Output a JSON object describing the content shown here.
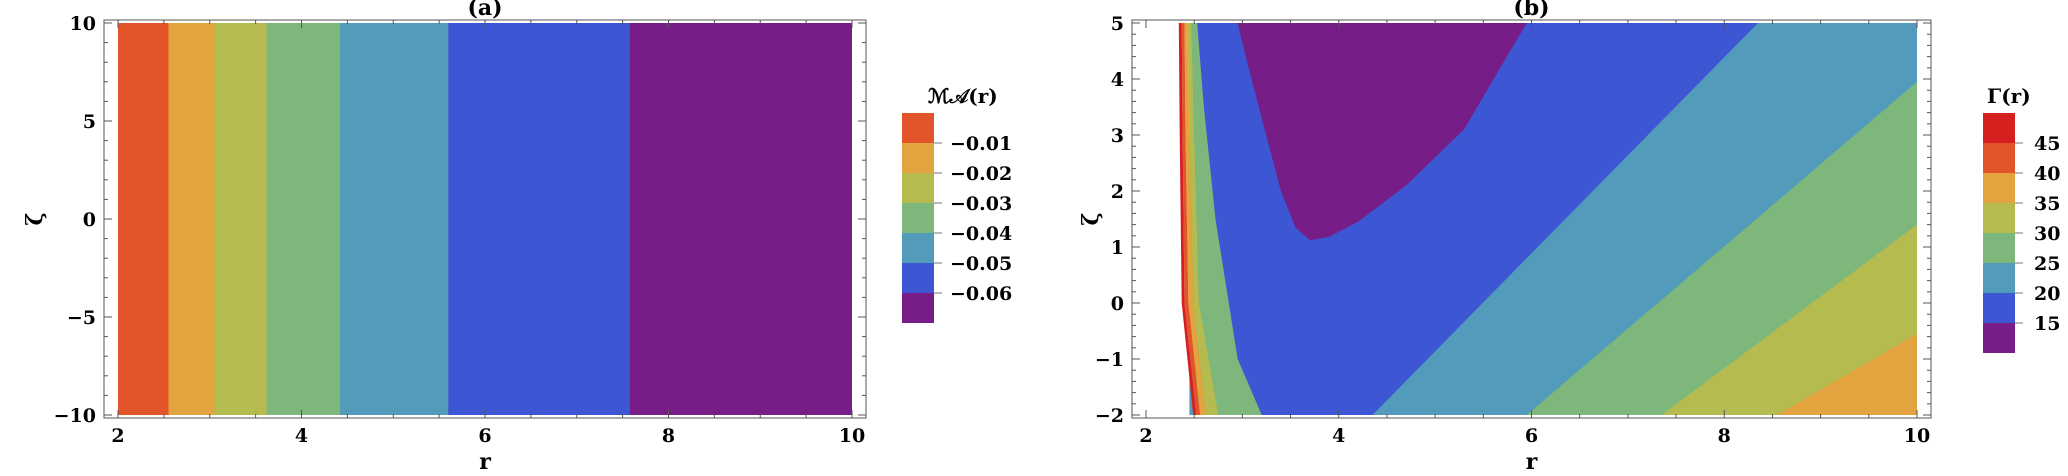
{
  "chart_data": [
    {
      "type": "contour",
      "title": "(a)",
      "xlabel": "r",
      "ylabel": "ζ",
      "xlim": [
        2,
        10
      ],
      "ylim": [
        -10,
        10
      ],
      "x_ticks": [
        2,
        4,
        6,
        8,
        10
      ],
      "y_ticks": [
        {
          "value": 10,
          "label": "10"
        },
        {
          "value": 5,
          "label": "5"
        },
        {
          "value": 0,
          "label": "0"
        },
        {
          "value": -5,
          "label": "−5"
        },
        {
          "value": -10,
          "label": "−10"
        }
      ],
      "bands": [
        {
          "x_from": 2.0,
          "x_to": 2.55,
          "color": "#e2552a"
        },
        {
          "x_from": 2.55,
          "x_to": 3.05,
          "color": "#e3a33f"
        },
        {
          "x_from": 3.05,
          "x_to": 3.62,
          "color": "#b5bb4f"
        },
        {
          "x_from": 3.62,
          "x_to": 4.42,
          "color": "#7db77b"
        },
        {
          "x_from": 4.42,
          "x_to": 5.6,
          "color": "#529bbb"
        },
        {
          "x_from": 5.6,
          "x_to": 7.58,
          "color": "#3d56d3"
        },
        {
          "x_from": 7.58,
          "x_to": 10.0,
          "color": "#761d87"
        }
      ],
      "legend": {
        "title": "ℳ𝒜(r)",
        "swatches": [
          "#e2552a",
          "#e3a33f",
          "#b5bb4f",
          "#7db77b",
          "#529bbb",
          "#3d56d3",
          "#761d87"
        ],
        "labels": [
          "−0.01",
          "−0.02",
          "−0.03",
          "−0.04",
          "−0.05",
          "−0.06"
        ]
      }
    },
    {
      "type": "contour",
      "title": "(b)",
      "xlabel": "r",
      "ylabel": "ζ",
      "xlim": [
        2,
        10
      ],
      "ylim": [
        -2,
        5
      ],
      "x_ticks": [
        2,
        4,
        6,
        8,
        10
      ],
      "y_ticks": [
        {
          "value": 5,
          "label": "5"
        },
        {
          "value": 4,
          "label": "4"
        },
        {
          "value": 3,
          "label": "3"
        },
        {
          "value": 2,
          "label": "2"
        },
        {
          "value": 1,
          "label": "1"
        },
        {
          "value": 0,
          "label": "0"
        },
        {
          "value": -1,
          "label": "−1"
        },
        {
          "value": -2,
          "label": "−2"
        }
      ],
      "regions": [
        {
          "color": "#529bbb",
          "points": [
            [
              2.45,
              5
            ],
            [
              10,
              5
            ],
            [
              10,
              -2
            ],
            [
              2.45,
              -2
            ]
          ]
        },
        {
          "color": "#7db77b",
          "points": [
            [
              10,
              3.95
            ],
            [
              10,
              -2
            ],
            [
              5.95,
              -2
            ]
          ]
        },
        {
          "color": "#b5bb4f",
          "points": [
            [
              10,
              1.4
            ],
            [
              10,
              -2
            ],
            [
              7.35,
              -2
            ]
          ]
        },
        {
          "color": "#e3a33f",
          "points": [
            [
              10,
              -0.55
            ],
            [
              10,
              -2
            ],
            [
              8.55,
              -2
            ]
          ]
        },
        {
          "color": "#3d56d3",
          "points": [
            [
              2.53,
              5
            ],
            [
              8.35,
              5
            ],
            [
              4.35,
              -2
            ],
            [
              3.2,
              -2
            ],
            [
              2.95,
              -1.0
            ],
            [
              2.72,
              1.5
            ],
            [
              2.6,
              3.5
            ]
          ]
        },
        {
          "color": "#761d87",
          "points": [
            [
              2.95,
              5
            ],
            [
              3.05,
              4.3
            ],
            [
              3.2,
              3.3
            ],
            [
              3.4,
              2.0
            ],
            [
              3.55,
              1.35
            ],
            [
              3.7,
              1.12
            ],
            [
              3.9,
              1.18
            ],
            [
              4.2,
              1.45
            ],
            [
              4.7,
              2.1
            ],
            [
              5.3,
              3.1
            ],
            [
              5.95,
              5
            ]
          ]
        },
        {
          "color": "#7db77b",
          "points": [
            [
              2.47,
              5
            ],
            [
              2.53,
              5
            ],
            [
              2.6,
              3.5
            ],
            [
              2.72,
              1.5
            ],
            [
              2.95,
              -1.0
            ],
            [
              3.2,
              -2
            ],
            [
              2.75,
              -2
            ],
            [
              2.55,
              0
            ],
            [
              2.5,
              3
            ]
          ]
        },
        {
          "color": "#b5bb4f",
          "points": [
            [
              2.43,
              5
            ],
            [
              2.47,
              5
            ],
            [
              2.5,
              3
            ],
            [
              2.55,
              0
            ],
            [
              2.75,
              -2
            ],
            [
              2.62,
              -2
            ],
            [
              2.49,
              0
            ],
            [
              2.45,
              3
            ]
          ]
        },
        {
          "color": "#e3a33f",
          "points": [
            [
              2.4,
              5
            ],
            [
              2.43,
              5
            ],
            [
              2.45,
              3
            ],
            [
              2.49,
              0
            ],
            [
              2.62,
              -2
            ],
            [
              2.56,
              -2
            ],
            [
              2.44,
              0
            ],
            [
              2.41,
              3
            ]
          ]
        },
        {
          "color": "#e2552a",
          "points": [
            [
              2.37,
              5
            ],
            [
              2.4,
              5
            ],
            [
              2.41,
              3
            ],
            [
              2.44,
              0
            ],
            [
              2.56,
              -2
            ],
            [
              2.52,
              -2
            ],
            [
              2.4,
              0
            ],
            [
              2.38,
              3
            ]
          ]
        },
        {
          "color": "#d62020",
          "points": [
            [
              2.34,
              5
            ],
            [
              2.37,
              5
            ],
            [
              2.38,
              3
            ],
            [
              2.4,
              0
            ],
            [
              2.52,
              -2
            ],
            [
              2.49,
              -2
            ],
            [
              2.37,
              0
            ],
            [
              2.35,
              3
            ]
          ]
        }
      ],
      "legend": {
        "title": "Γ(r)",
        "swatches": [
          "#d62020",
          "#e2552a",
          "#e3a33f",
          "#b5bb4f",
          "#7db77b",
          "#529bbb",
          "#3d56d3",
          "#761d87"
        ],
        "labels": [
          "45",
          "40",
          "35",
          "30",
          "25",
          "20",
          "15"
        ]
      }
    }
  ]
}
